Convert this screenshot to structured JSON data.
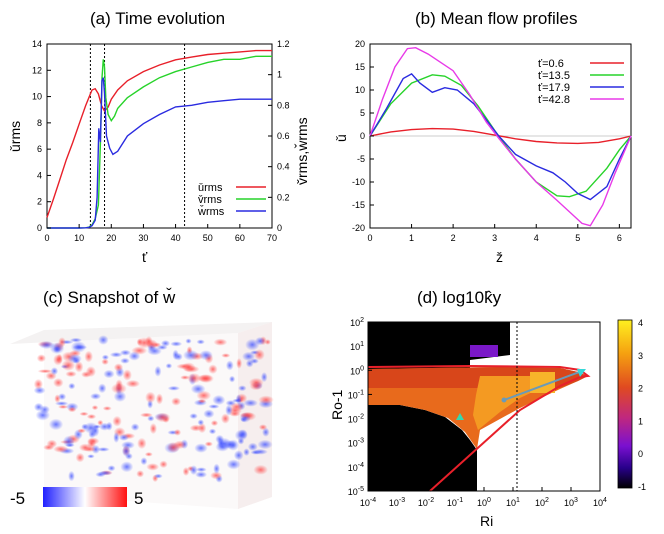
{
  "chart_data": [
    {
      "panel": "a",
      "type": "line",
      "title": "(a) Time evolution",
      "xlabel": "ť",
      "ylabel_left": "ǔrms",
      "ylabel_right": "v̌rms,w̌rms",
      "xlim": [
        0,
        70
      ],
      "ylim_left": [
        0,
        14
      ],
      "ylim_right": [
        0,
        1.2
      ],
      "xticks": [
        "0",
        "10",
        "20",
        "30",
        "40",
        "50",
        "60",
        "70"
      ],
      "yticks_left": [
        "0",
        "2",
        "4",
        "6",
        "8",
        "10",
        "12",
        "14"
      ],
      "yticks_right": [
        "0",
        "0.2",
        "0.4",
        "0.6",
        "0.8",
        "1",
        "1.2"
      ],
      "vlines": [
        13.5,
        17.9,
        42.8
      ],
      "legend": [
        "ǔrms",
        "v̌rms",
        "w̌rms"
      ],
      "series": [
        {
          "name": "ǔrms",
          "axis": "left",
          "color": "#e8202a",
          "x": [
            0,
            2,
            4,
            6,
            8,
            10,
            12,
            13.5,
            14,
            15,
            16,
            17,
            17.9,
            19,
            20,
            22,
            25,
            30,
            35,
            40,
            45,
            50,
            55,
            60,
            65,
            70
          ],
          "y": [
            0.8,
            2.2,
            3.7,
            5.2,
            6.5,
            7.9,
            9.3,
            10.2,
            10.5,
            10.6,
            10.2,
            9.3,
            8.9,
            9.2,
            9.8,
            10.5,
            11.2,
            11.9,
            12.4,
            12.8,
            13.0,
            13.2,
            13.3,
            13.4,
            13.5,
            13.5
          ]
        },
        {
          "name": "v̌rms",
          "axis": "right",
          "color": "#27d32a",
          "x": [
            0,
            10,
            12,
            13,
            14,
            15,
            16,
            16.6,
            17.1,
            17.5,
            17.9,
            18.3,
            19,
            20,
            21,
            22,
            25,
            30,
            35,
            40,
            45,
            50,
            55,
            60,
            65,
            70
          ],
          "y": [
            0,
            0,
            0.001,
            0.005,
            0.02,
            0.06,
            0.15,
            0.55,
            0.98,
            1.1,
            1.05,
            0.85,
            0.74,
            0.7,
            0.73,
            0.78,
            0.85,
            0.92,
            0.98,
            1.02,
            1.05,
            1.08,
            1.1,
            1.1,
            1.12,
            1.12
          ]
        },
        {
          "name": "w̌rms",
          "axis": "right",
          "color": "#2a2be0",
          "x": [
            0,
            10,
            12,
            13,
            14,
            15,
            15.6,
            16.1,
            16.6,
            17.1,
            17.5,
            17.9,
            18.5,
            19.5,
            20.5,
            22,
            25,
            30,
            35,
            40,
            45,
            50,
            55,
            60,
            65,
            70
          ],
          "y": [
            0,
            0,
            0.001,
            0.004,
            0.015,
            0.05,
            0.2,
            0.65,
            0.56,
            0.96,
            0.98,
            0.88,
            0.6,
            0.52,
            0.48,
            0.5,
            0.6,
            0.68,
            0.74,
            0.79,
            0.8,
            0.82,
            0.83,
            0.84,
            0.84,
            0.84
          ]
        }
      ]
    },
    {
      "panel": "b",
      "type": "line",
      "title": "(b) Mean flow profiles",
      "xlabel": "ž",
      "ylabel": "ǔ",
      "xlim": [
        0,
        6.28
      ],
      "ylim": [
        -20,
        20
      ],
      "xticks": [
        "0",
        "1",
        "2",
        "3",
        "4",
        "5",
        "6"
      ],
      "yticks": [
        "-20",
        "-15",
        "-10",
        "-5",
        "0",
        "5",
        "10",
        "15",
        "20"
      ],
      "series": [
        {
          "name": "ť=0.6",
          "color": "#e8202a",
          "x": [
            0,
            0.5,
            1,
            1.5,
            2,
            2.5,
            3,
            3.5,
            4,
            4.5,
            5,
            5.5,
            6,
            6.28
          ],
          "y": [
            0,
            0.9,
            1.4,
            1.6,
            1.5,
            1.0,
            0.2,
            -0.6,
            -1.2,
            -1.5,
            -1.6,
            -1.4,
            -0.6,
            0
          ]
        },
        {
          "name": "ť=13.5",
          "color": "#27d32a",
          "x": [
            0,
            0.5,
            1,
            1.5,
            1.8,
            2.2,
            2.6,
            3,
            3.5,
            4,
            4.5,
            4.8,
            5.2,
            5.7,
            6,
            6.28
          ],
          "y": [
            0,
            7,
            11.5,
            13.3,
            13,
            11,
            6.5,
            1.2,
            -5,
            -10,
            -13,
            -13.2,
            -12,
            -7,
            -3,
            0
          ]
        },
        {
          "name": "ť=17.9",
          "color": "#2a2be0",
          "x": [
            0,
            0.4,
            0.8,
            1,
            1.2,
            1.5,
            1.8,
            2.1,
            2.5,
            2.8,
            3.1,
            3.5,
            4,
            4.4,
            4.7,
            5,
            5.3,
            5.7,
            6,
            6.28
          ],
          "y": [
            0,
            6,
            12.5,
            13.5,
            11.5,
            9.5,
            10.5,
            10,
            7,
            3.5,
            0,
            -4,
            -6.5,
            -8,
            -10,
            -12.5,
            -13.8,
            -11,
            -5,
            0
          ]
        },
        {
          "name": "ť=42.8",
          "color": "#e83ae8",
          "x": [
            0,
            0.3,
            0.6,
            0.9,
            1.1,
            1.4,
            1.7,
            2,
            2.4,
            2.8,
            3.1,
            3.5,
            4,
            4.5,
            4.8,
            5.1,
            5.3,
            5.6,
            5.9,
            6.28
          ],
          "y": [
            0,
            8,
            15,
            19,
            19.2,
            17.8,
            16,
            14.2,
            9,
            3,
            -0.5,
            -5,
            -10,
            -14,
            -16.5,
            -19,
            -19.5,
            -15,
            -8,
            0
          ]
        }
      ]
    },
    {
      "panel": "c",
      "type": "heatmap",
      "title": "(c)  Snapshot of w̌",
      "colorbar_min": "-5",
      "colorbar_max": "5"
    },
    {
      "panel": "d",
      "type": "heatmap",
      "title": "(d)   log10k̂y",
      "xlabel": "Ri",
      "ylabel": "Ro-1",
      "xticks": [
        "10-4",
        "10-3",
        "10-2",
        "10-1",
        "100",
        "101",
        "102",
        "103",
        "104"
      ],
      "yticks": [
        "102",
        "101",
        "100",
        "10-1",
        "10-2",
        "10-3",
        "10-4",
        "10-5"
      ],
      "colorbar_ticks": [
        "4",
        "3",
        "2",
        "1",
        "0",
        "-1"
      ],
      "vline_Ri": 7,
      "markers": [
        {
          "Ri": 0.1,
          "Ro_inv": 0.01
        },
        {
          "Ri": 5,
          "Ro_inv": 0.1
        },
        {
          "Ri": 1000,
          "Ro_inv": 1.0
        }
      ]
    }
  ]
}
